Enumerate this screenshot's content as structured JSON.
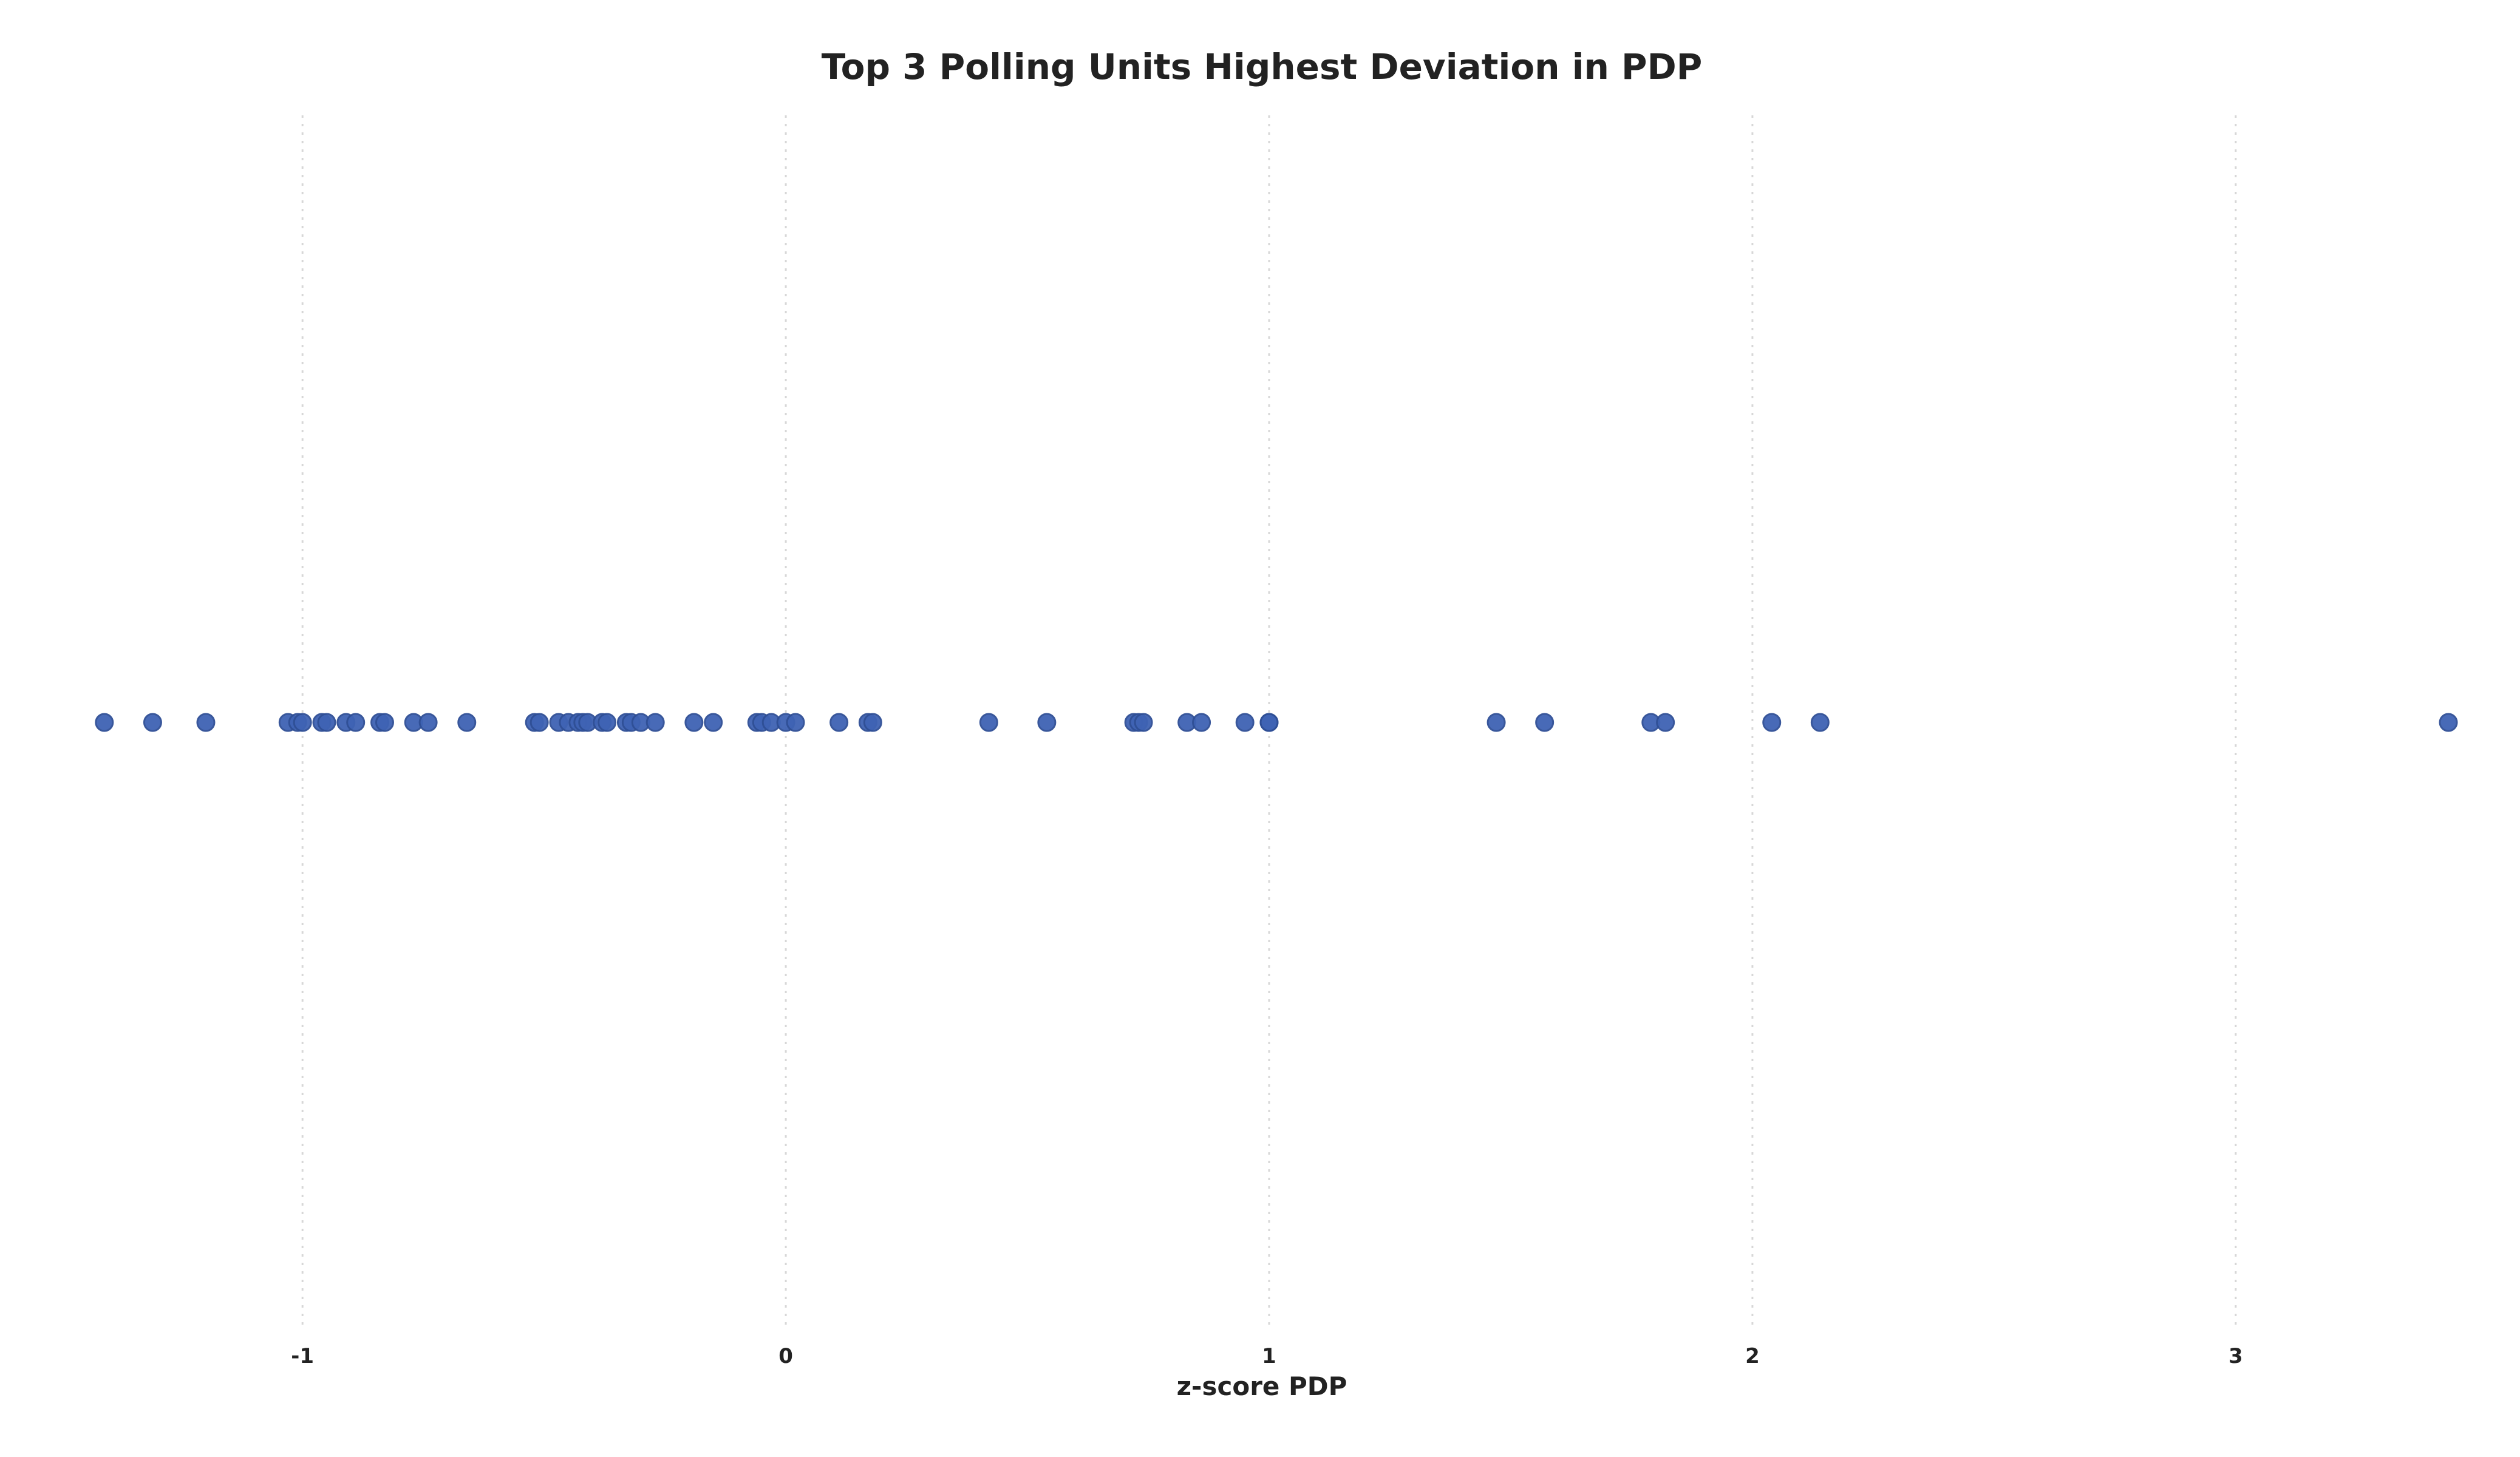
{
  "chart_data": {
    "type": "scatter",
    "title": "Top 3 Polling Units Highest Deviation in PDP",
    "xlabel": "z-score PDP",
    "ylabel": "",
    "xlim": [
      -1.45,
      3.45
    ],
    "xticks": [
      -1,
      0,
      1,
      2,
      3
    ],
    "grid": true,
    "legend": "none",
    "marker_color": "#3f63b4",
    "marker_edge_color": "#2f4f96",
    "series": [
      {
        "x": [
          -1.41,
          -1.31,
          -1.2,
          -1.03,
          -1.01,
          -1.0,
          -0.96,
          -0.95,
          -0.91,
          -0.89,
          -0.84,
          -0.83,
          -0.77,
          -0.74,
          -0.66,
          -0.52,
          -0.51,
          -0.47,
          -0.45,
          -0.43,
          -0.42,
          -0.41,
          -0.38,
          -0.37,
          -0.33,
          -0.32,
          -0.3,
          -0.27,
          -0.19,
          -0.15,
          -0.06,
          -0.05,
          -0.03,
          0.0,
          0.02,
          0.11,
          0.17,
          0.18,
          0.42,
          0.54,
          0.72,
          0.73,
          0.74,
          0.83,
          0.86,
          0.95,
          1.0,
          1.0,
          1.47,
          1.57,
          1.79,
          1.82,
          2.04,
          2.14,
          3.44
        ]
      }
    ]
  }
}
